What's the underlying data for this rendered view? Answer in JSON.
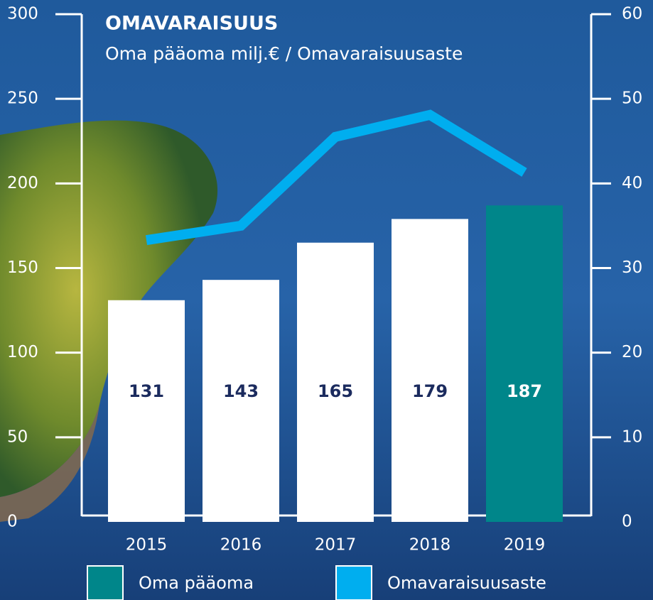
{
  "chart_data": {
    "type": "bar",
    "title": "OMAVARAISUUS",
    "subtitle": "Oma pääoma milj.€ / Omavaraisuusaste",
    "categories": [
      "2015",
      "2016",
      "2017",
      "2018",
      "2019"
    ],
    "series": [
      {
        "name": "Oma pääoma",
        "type": "bar",
        "color": "#00868a",
        "bar_colors": [
          "#ffffff",
          "#ffffff",
          "#ffffff",
          "#ffffff",
          "#00868a"
        ],
        "label_colors": [
          "#1b2b5e",
          "#1b2b5e",
          "#1b2b5e",
          "#1b2b5e",
          "#ffffff"
        ],
        "values": [
          131,
          143,
          165,
          179,
          187
        ]
      },
      {
        "name": "Omavaraisuusaste",
        "type": "line",
        "axis": "y2",
        "color": "#00aeef",
        "values": [
          33.3,
          35.0,
          45.5,
          48.1,
          41.3
        ]
      }
    ],
    "ylim": [
      0,
      300
    ],
    "yticks": [
      0,
      50,
      100,
      150,
      200,
      250,
      300
    ],
    "y2lim": [
      0,
      60
    ],
    "y2ticks": [
      0,
      10,
      20,
      30,
      40,
      50,
      60
    ]
  }
}
